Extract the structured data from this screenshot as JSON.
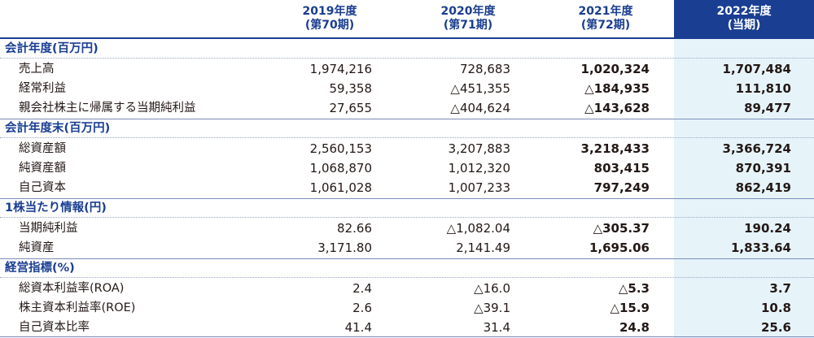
{
  "colors": {
    "accent": "#1a3e92",
    "highlight_bg": "#e6f4fa",
    "text": "#231815"
  },
  "columns": [
    {
      "year": "2019年度",
      "period": "(第70期)"
    },
    {
      "year": "2020年度",
      "period": "(第71期)"
    },
    {
      "year": "2021年度",
      "period": "(第72期)"
    },
    {
      "year": "2022年度",
      "period": "(当期)"
    }
  ],
  "sections": [
    {
      "title": "会計年度(百万円)",
      "rows": [
        {
          "label": "売上高",
          "values": [
            "1,974,216",
            "728,683",
            "1,020,324",
            "1,707,484"
          ]
        },
        {
          "label": "経常利益",
          "values": [
            "59,358",
            "△451,355",
            "△184,935",
            "111,810"
          ]
        },
        {
          "label": "親会社株主に帰属する当期純利益",
          "values": [
            "27,655",
            "△404,624",
            "△143,628",
            "89,477"
          ]
        }
      ]
    },
    {
      "title": "会計年度末(百万円)",
      "rows": [
        {
          "label": "総資産額",
          "values": [
            "2,560,153",
            "3,207,883",
            "3,218,433",
            "3,366,724"
          ]
        },
        {
          "label": "純資産額",
          "values": [
            "1,068,870",
            "1,012,320",
            "803,415",
            "870,391"
          ]
        },
        {
          "label": "自己資本",
          "values": [
            "1,061,028",
            "1,007,233",
            "797,249",
            "862,419"
          ]
        }
      ]
    },
    {
      "title": "1株当たり情報(円)",
      "rows": [
        {
          "label": "当期純利益",
          "values": [
            "82.66",
            "△1,082.04",
            "△305.37",
            "190.24"
          ]
        },
        {
          "label": "純資産",
          "values": [
            "3,171.80",
            "2,141.49",
            "1,695.06",
            "1,833.64"
          ]
        }
      ]
    },
    {
      "title": "経営指標(%)",
      "rows": [
        {
          "label": "総資本利益率(ROA)",
          "values": [
            "2.4",
            "△16.0",
            "△5.3",
            "3.7"
          ]
        },
        {
          "label": "株主資本利益率(ROE)",
          "values": [
            "2.6",
            "△39.1",
            "△15.9",
            "10.8"
          ]
        },
        {
          "label": "自己資本比率",
          "values": [
            "41.4",
            "31.4",
            "24.8",
            "25.6"
          ]
        }
      ]
    }
  ]
}
